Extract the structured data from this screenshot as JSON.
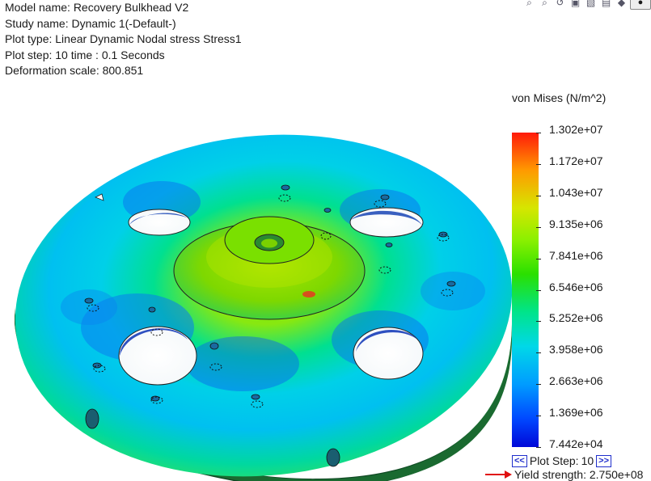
{
  "info": {
    "model_name": "Model name: Recovery Bulkhead V2",
    "study_name": "Study name: Dynamic 1(-Default-)",
    "plot_type": "Plot type: Linear Dynamic Nodal stress Stress1",
    "plot_step": "Plot step: 10   time : 0.1 Seconds",
    "deformation_scale": "Deformation scale: 800.851"
  },
  "toolbar": {
    "icons": [
      "zoom-to-fit-icon",
      "zoom-area-icon",
      "previous-view-icon",
      "section-view-icon",
      "view-orientation-icon",
      "display-style-icon",
      "hide-show-icon",
      "apply-scene-icon"
    ]
  },
  "legend": {
    "title": "von Mises (N/m^2)",
    "ticks": [
      "1.302e+07",
      "1.172e+07",
      "1.043e+07",
      "9.135e+06",
      "7.841e+06",
      "6.546e+06",
      "5.252e+06",
      "3.958e+06",
      "2.663e+06",
      "1.369e+06",
      "7.442e+04"
    ],
    "colors": [
      "#ff1a0a",
      "#ff9a00",
      "#d6e600",
      "#2ae000",
      "#00e48a",
      "#00d8e8",
      "#009cff",
      "#0048ff",
      "#0008d8"
    ]
  },
  "plot_step_control": {
    "prev_label": "<<",
    "label": "Plot Step:",
    "value": "10",
    "next_label": ">>"
  },
  "yield": {
    "text": "Yield strength: 2.750e+08"
  }
}
